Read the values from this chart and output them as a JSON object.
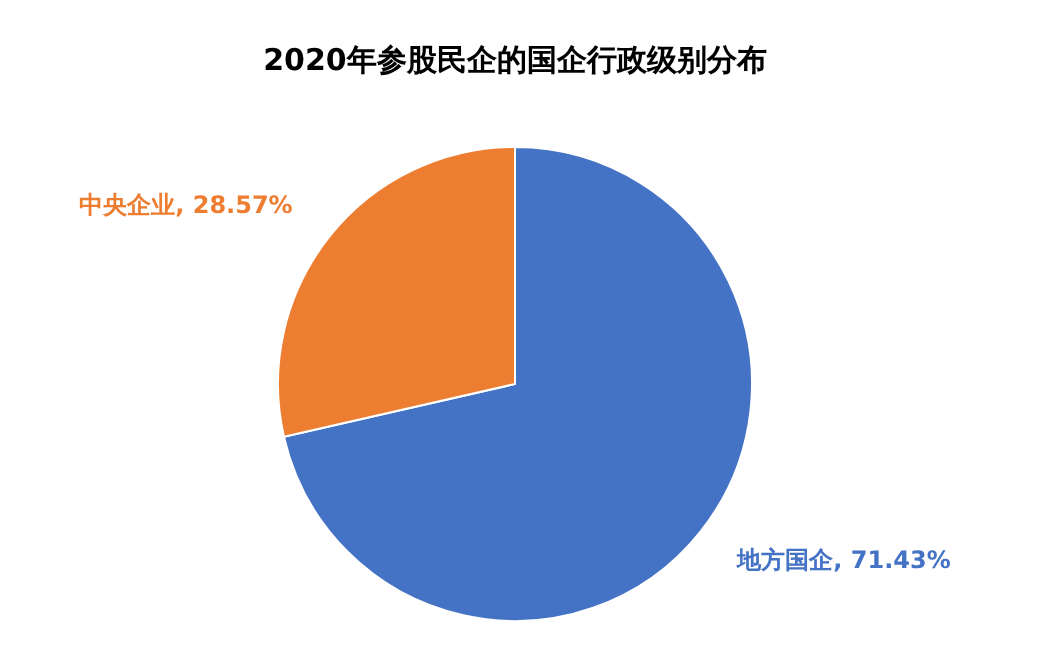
{
  "chart_data": {
    "type": "pie",
    "title": "2020年参股民企的国企行政级别分布",
    "categories": [
      "地方国企",
      "中央企业"
    ],
    "values": [
      71.43,
      28.57
    ],
    "colors": [
      "#4472c4",
      "#ed7d31"
    ],
    "value_labels": [
      "71.43%",
      "28.57%"
    ],
    "legend": false
  }
}
